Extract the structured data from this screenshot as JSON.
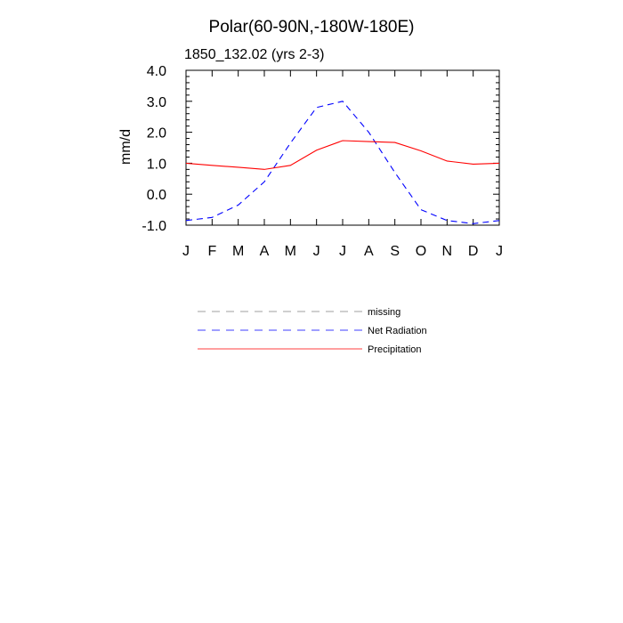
{
  "chart_data": {
    "type": "line",
    "title": "Polar(60-90N,-180W-180E)",
    "subtitle": "1850_132.02 (yrs 2-3)",
    "xlabel": "",
    "ylabel": "mm/d",
    "categories": [
      "J",
      "F",
      "M",
      "A",
      "M",
      "J",
      "J",
      "A",
      "S",
      "O",
      "N",
      "D",
      "J"
    ],
    "ylim": [
      -1.0,
      4.0
    ],
    "yticks": [
      "-1.0",
      "0.0",
      "1.0",
      "2.0",
      "3.0",
      "4.0"
    ],
    "grid": false,
    "legend_position": "below",
    "series": [
      {
        "name": "Net Radiation",
        "color": "#0000ff",
        "style": "dashed",
        "values": [
          -0.85,
          -0.75,
          -0.35,
          0.4,
          1.65,
          2.8,
          3.0,
          2.0,
          0.7,
          -0.5,
          -0.85,
          -0.95,
          -0.85
        ]
      },
      {
        "name": "Precipitation",
        "color": "#ff0000",
        "style": "solid",
        "values": [
          1.0,
          0.93,
          0.87,
          0.8,
          0.93,
          1.42,
          1.73,
          1.7,
          1.67,
          1.4,
          1.07,
          0.97,
          1.0
        ]
      }
    ],
    "legend": [
      {
        "label": "missing",
        "color": "#808080",
        "style": "dashed"
      },
      {
        "label": "Net Radiation",
        "color": "#0000ff",
        "style": "dashed"
      },
      {
        "label": "Precipitation",
        "color": "#ff0000",
        "style": "solid"
      }
    ]
  }
}
